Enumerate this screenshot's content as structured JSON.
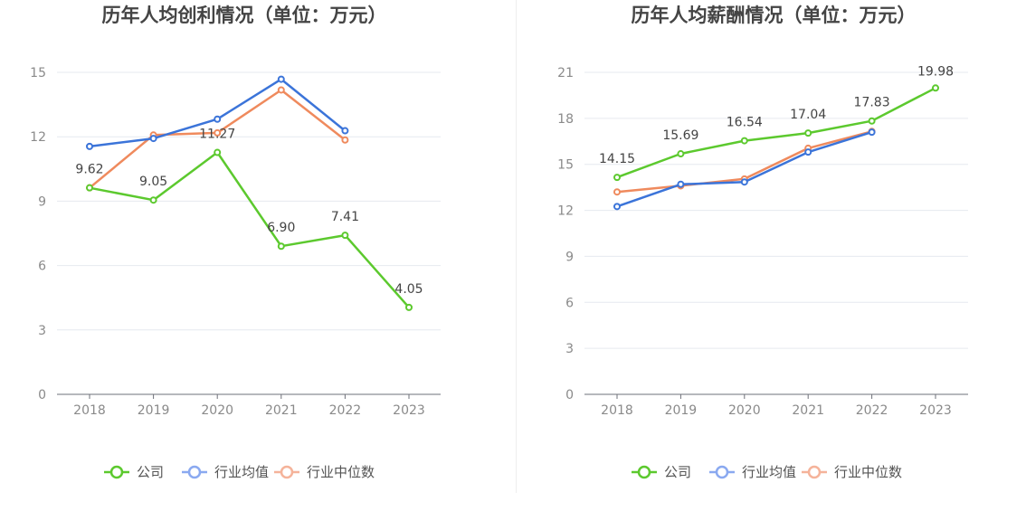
{
  "chart_data": [
    {
      "type": "line",
      "title": "历年人均创利情况（单位：万元）",
      "categories": [
        "2018",
        "2019",
        "2020",
        "2021",
        "2022",
        "2023"
      ],
      "ylim": [
        0,
        15
      ],
      "yticks": [
        0,
        3,
        6,
        9,
        12,
        15
      ],
      "grid": true,
      "legend_position": "bottom",
      "series": [
        {
          "name": "公司",
          "color": "#5cc92e",
          "values": [
            9.62,
            9.05,
            11.27,
            6.9,
            7.41,
            4.05
          ],
          "labels": [
            "9.62",
            "9.05",
            "11.27",
            "6.90",
            "7.41",
            "4.05"
          ]
        },
        {
          "name": "行业均值",
          "color": "#3b74d9",
          "values": [
            11.55,
            11.92,
            12.82,
            14.68,
            12.28,
            null
          ]
        },
        {
          "name": "行业中位数",
          "color": "#ef8a5d",
          "values": [
            9.62,
            12.08,
            12.18,
            14.18,
            11.85,
            null
          ]
        }
      ]
    },
    {
      "type": "line",
      "title": "历年人均薪酬情况（单位：万元）",
      "categories": [
        "2018",
        "2019",
        "2020",
        "2021",
        "2022",
        "2023"
      ],
      "ylim": [
        0,
        21
      ],
      "yticks": [
        0,
        3,
        6,
        9,
        12,
        15,
        18,
        21
      ],
      "grid": true,
      "legend_position": "bottom",
      "series": [
        {
          "name": "公司",
          "color": "#5cc92e",
          "values": [
            14.15,
            15.69,
            16.54,
            17.04,
            17.83,
            19.98
          ],
          "labels": [
            "14.15",
            "15.69",
            "16.54",
            "17.04",
            "17.83",
            "19.98"
          ]
        },
        {
          "name": "行业均值",
          "color": "#3b74d9",
          "values": [
            12.25,
            13.7,
            13.85,
            15.8,
            17.1,
            null
          ]
        },
        {
          "name": "行业中位数",
          "color": "#ef8a5d",
          "values": [
            13.2,
            13.6,
            14.05,
            16.05,
            17.15,
            null
          ]
        }
      ]
    }
  ],
  "legend": [
    {
      "name": "公司",
      "color": "#5cc92e"
    },
    {
      "name": "行业均值",
      "color": "#8aa9f0"
    },
    {
      "name": "行业中位数",
      "color": "#f5b39a"
    }
  ]
}
